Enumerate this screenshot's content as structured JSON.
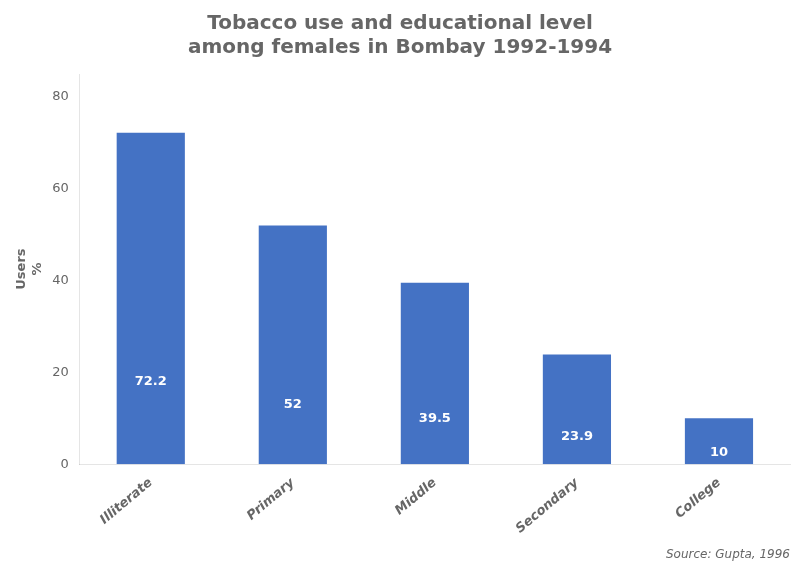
{
  "chart_data": {
    "type": "bar",
    "title": "Tobacco use and educational level\namong females in Bombay 1992-1994",
    "categories": [
      "Illiterate",
      "Primary",
      "Middle",
      "Secondary",
      "College"
    ],
    "values": [
      72.2,
      52,
      39.5,
      23.9,
      10
    ],
    "color": "#4472C4",
    "ylabel": "Users\n%",
    "ylim": [
      0,
      85
    ],
    "yticks": [
      0,
      20,
      40,
      60,
      80
    ],
    "grid": false,
    "data_labels": true,
    "annotations": [
      "Source: Gupta, 1996"
    ]
  }
}
